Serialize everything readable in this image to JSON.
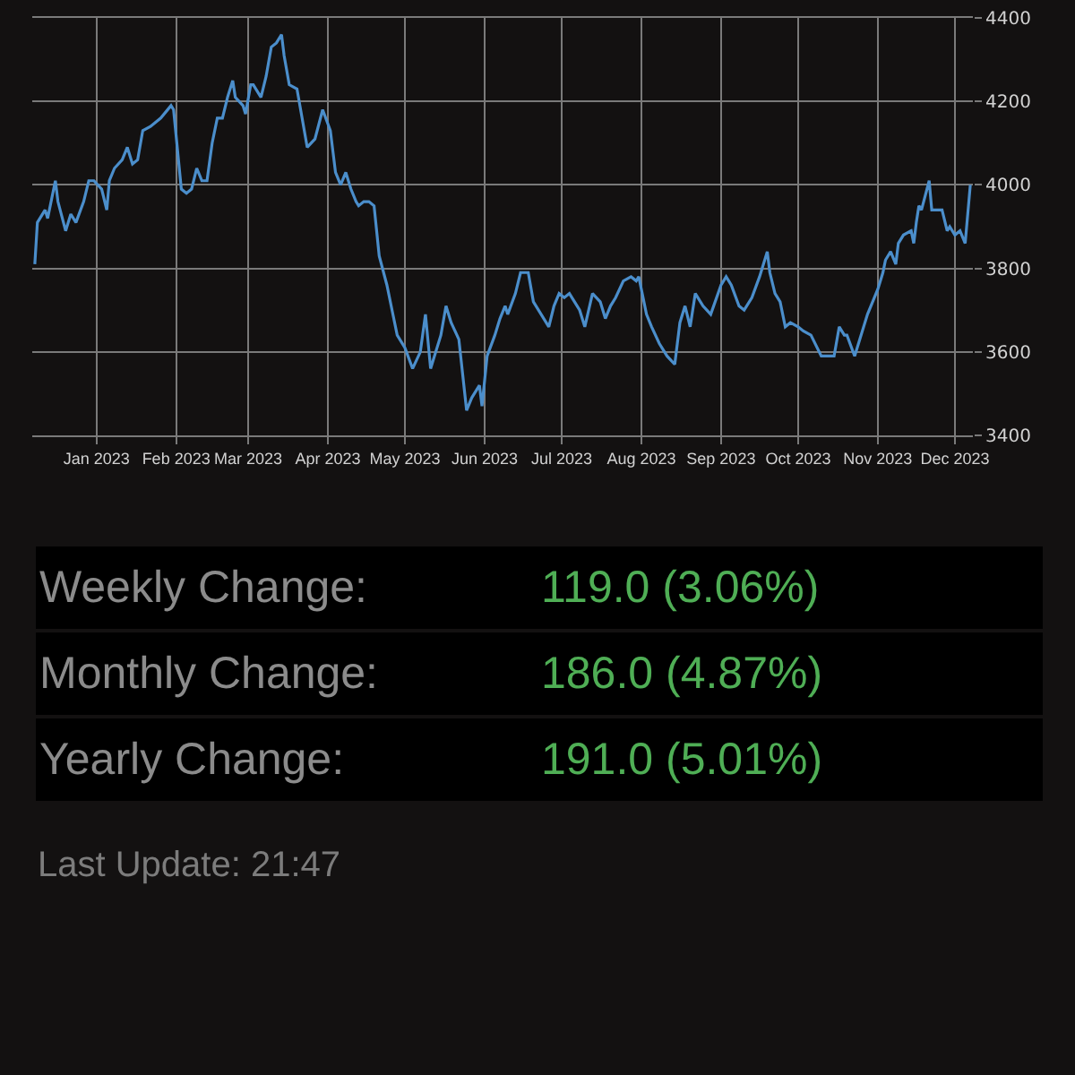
{
  "chart_data": {
    "type": "line",
    "grid": true,
    "xlim": [
      "2022-12-07",
      "2023-12-08"
    ],
    "xticks": [
      {
        "value": "2023-01-01",
        "label": "Jan 2023"
      },
      {
        "value": "2023-02-01",
        "label": "Feb 2023"
      },
      {
        "value": "2023-03-01",
        "label": "Mar 2023"
      },
      {
        "value": "2023-04-01",
        "label": "Apr 2023"
      },
      {
        "value": "2023-05-01",
        "label": "May 2023"
      },
      {
        "value": "2023-06-01",
        "label": "Jun 2023"
      },
      {
        "value": "2023-07-01",
        "label": "Jul 2023"
      },
      {
        "value": "2023-08-01",
        "label": "Aug 2023"
      },
      {
        "value": "2023-09-01",
        "label": "Sep 2023"
      },
      {
        "value": "2023-10-01",
        "label": "Oct 2023"
      },
      {
        "value": "2023-11-01",
        "label": "Nov 2023"
      },
      {
        "value": "2023-12-01",
        "label": "Dec 2023"
      }
    ],
    "ylim": [
      3400,
      4400
    ],
    "yticks": [
      3400,
      3600,
      3800,
      4000,
      4200,
      4400
    ],
    "series": [
      {
        "color": "#4b8ecb",
        "x": [
          "2022-12-08",
          "2022-12-09",
          "2022-12-12",
          "2022-12-13",
          "2022-12-16",
          "2022-12-17",
          "2022-12-20",
          "2022-12-22",
          "2022-12-24",
          "2022-12-27",
          "2022-12-29",
          "2022-12-31",
          "2023-01-03",
          "2023-01-05",
          "2023-01-06",
          "2023-01-08",
          "2023-01-11",
          "2023-01-13",
          "2023-01-15",
          "2023-01-17",
          "2023-01-19",
          "2023-01-22",
          "2023-01-26",
          "2023-01-30",
          "2023-01-31",
          "2023-02-03",
          "2023-02-05",
          "2023-02-07",
          "2023-02-09",
          "2023-02-11",
          "2023-02-13",
          "2023-02-15",
          "2023-02-17",
          "2023-02-19",
          "2023-02-21",
          "2023-02-23",
          "2023-02-24",
          "2023-02-27",
          "2023-02-28",
          "2023-03-02",
          "2023-03-03",
          "2023-03-06",
          "2023-03-08",
          "2023-03-10",
          "2023-03-12",
          "2023-03-14",
          "2023-03-15",
          "2023-03-17",
          "2023-03-20",
          "2023-03-22",
          "2023-03-24",
          "2023-03-27",
          "2023-03-30",
          "2023-04-02",
          "2023-04-04",
          "2023-04-06",
          "2023-04-08",
          "2023-04-10",
          "2023-04-12",
          "2023-04-13",
          "2023-04-15",
          "2023-04-17",
          "2023-04-19",
          "2023-04-21",
          "2023-04-24",
          "2023-04-26",
          "2023-04-28",
          "2023-05-01",
          "2023-05-04",
          "2023-05-07",
          "2023-05-09",
          "2023-05-11",
          "2023-05-15",
          "2023-05-17",
          "2023-05-19",
          "2023-05-22",
          "2023-05-25",
          "2023-05-27",
          "2023-05-30",
          "2023-05-31",
          "2023-06-02",
          "2023-06-05",
          "2023-06-07",
          "2023-06-09",
          "2023-06-10",
          "2023-06-13",
          "2023-06-15",
          "2023-06-18",
          "2023-06-20",
          "2023-06-23",
          "2023-06-26",
          "2023-06-28",
          "2023-06-30",
          "2023-07-02",
          "2023-07-04",
          "2023-07-06",
          "2023-07-08",
          "2023-07-10",
          "2023-07-13",
          "2023-07-16",
          "2023-07-18",
          "2023-07-20",
          "2023-07-22",
          "2023-07-25",
          "2023-07-28",
          "2023-07-30",
          "2023-07-31",
          "2023-08-03",
          "2023-08-05",
          "2023-08-08",
          "2023-08-11",
          "2023-08-14",
          "2023-08-16",
          "2023-08-18",
          "2023-08-20",
          "2023-08-22",
          "2023-08-25",
          "2023-08-28",
          "2023-09-01",
          "2023-09-03",
          "2023-09-05",
          "2023-09-08",
          "2023-09-10",
          "2023-09-13",
          "2023-09-16",
          "2023-09-19",
          "2023-09-20",
          "2023-09-22",
          "2023-09-24",
          "2023-09-26",
          "2023-09-28",
          "2023-10-01",
          "2023-10-03",
          "2023-10-06",
          "2023-10-10",
          "2023-10-13",
          "2023-10-15",
          "2023-10-17",
          "2023-10-19",
          "2023-10-20",
          "2023-10-23",
          "2023-10-25",
          "2023-10-28",
          "2023-11-01",
          "2023-11-03",
          "2023-11-04",
          "2023-11-06",
          "2023-11-08",
          "2023-11-09",
          "2023-11-11",
          "2023-11-14",
          "2023-11-15",
          "2023-11-16",
          "2023-11-17",
          "2023-11-18",
          "2023-11-21",
          "2023-11-22",
          "2023-11-24",
          "2023-11-26",
          "2023-11-28",
          "2023-11-29",
          "2023-12-01",
          "2023-12-03",
          "2023-12-05",
          "2023-12-07"
        ],
        "values": [
          3810,
          3910,
          3940,
          3920,
          4010,
          3960,
          3890,
          3930,
          3910,
          3960,
          4010,
          4010,
          3990,
          3940,
          4010,
          4040,
          4060,
          4090,
          4050,
          4060,
          4130,
          4140,
          4160,
          4190,
          4180,
          3990,
          3980,
          3990,
          4040,
          4010,
          4010,
          4100,
          4160,
          4160,
          4210,
          4250,
          4210,
          4190,
          4170,
          4240,
          4240,
          4210,
          4260,
          4330,
          4340,
          4360,
          4310,
          4240,
          4230,
          4160,
          4090,
          4110,
          4180,
          4130,
          4030,
          4000,
          4030,
          3990,
          3960,
          3950,
          3960,
          3960,
          3950,
          3830,
          3760,
          3700,
          3640,
          3610,
          3560,
          3600,
          3690,
          3560,
          3640,
          3710,
          3670,
          3630,
          3460,
          3490,
          3520,
          3470,
          3590,
          3640,
          3680,
          3710,
          3690,
          3740,
          3790,
          3790,
          3720,
          3690,
          3660,
          3710,
          3740,
          3730,
          3740,
          3720,
          3700,
          3660,
          3740,
          3720,
          3680,
          3710,
          3730,
          3770,
          3780,
          3770,
          3780,
          3690,
          3660,
          3620,
          3590,
          3570,
          3670,
          3710,
          3660,
          3740,
          3710,
          3690,
          3760,
          3780,
          3760,
          3710,
          3700,
          3730,
          3780,
          3840,
          3790,
          3740,
          3720,
          3660,
          3670,
          3660,
          3650,
          3640,
          3590,
          3590,
          3590,
          3660,
          3640,
          3640,
          3590,
          3630,
          3690,
          3750,
          3790,
          3820,
          3840,
          3810,
          3860,
          3880,
          3890,
          3860,
          3910,
          3950,
          3940,
          4010,
          3940,
          3940,
          3940,
          3890,
          3900,
          3880,
          3890,
          3860,
          4000
        ]
      }
    ],
    "annotations": [
      "Weekly Change:",
      "119.0 (3.06%)",
      "Monthly Change:",
      "186.0 (4.87%)",
      "Yearly Change:",
      "191.0 (5.01%)",
      "Last Update: 21:47"
    ]
  }
}
